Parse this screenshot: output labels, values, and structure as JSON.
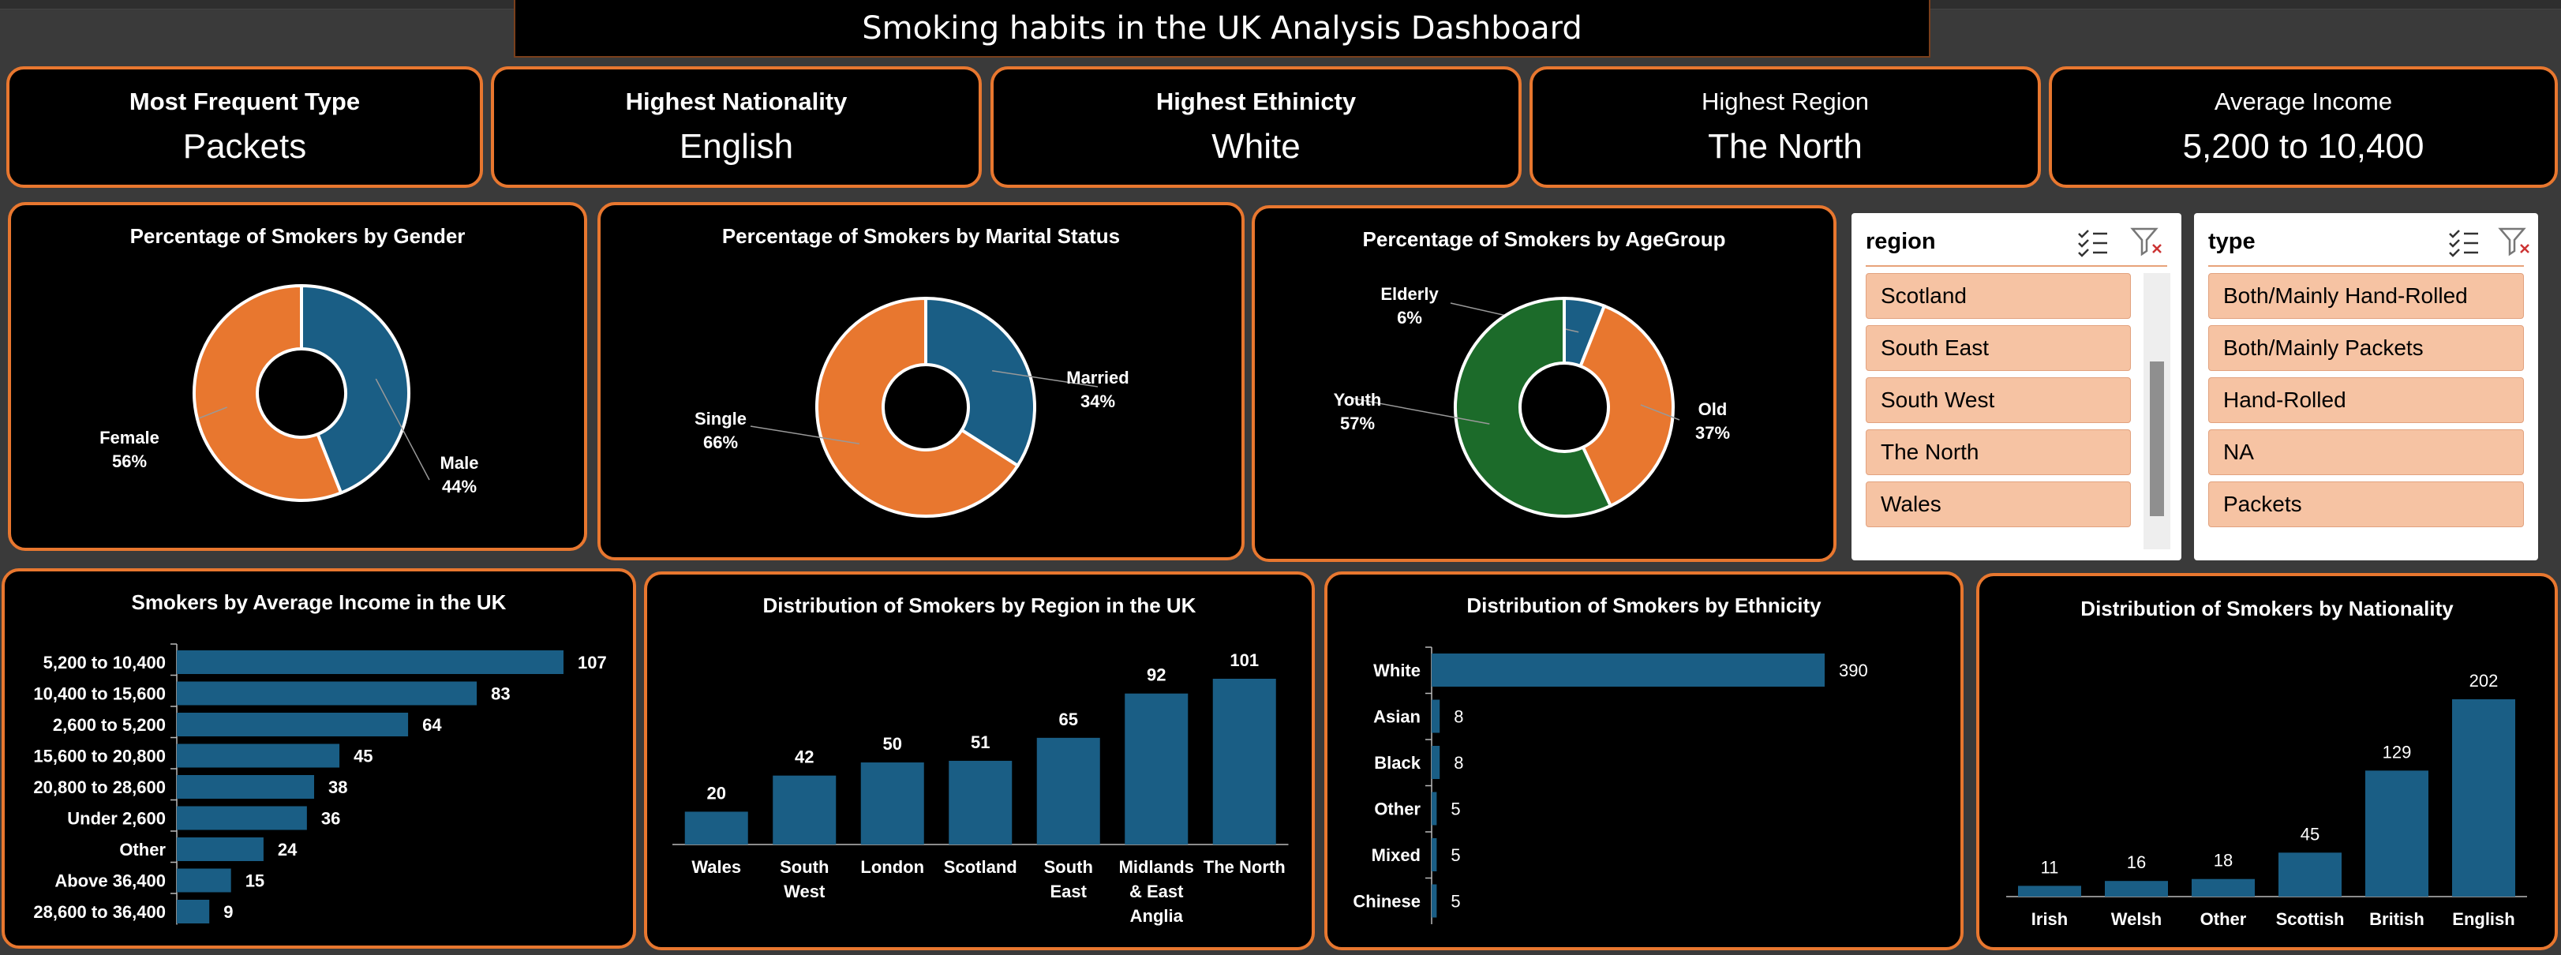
{
  "dashboard": {
    "title": "Smoking habits in the UK Analysis Dashboard"
  },
  "kpis": [
    {
      "label": "Most Frequent Type",
      "value": "Packets"
    },
    {
      "label": "Highest Nationality",
      "value": "English"
    },
    {
      "label": "Highest Ethinicty",
      "value": "White"
    },
    {
      "label": "Highest Region",
      "value": "The North"
    },
    {
      "label": "Average Income",
      "value": "5,200 to 10,400"
    }
  ],
  "slicers": {
    "region": {
      "header": "region",
      "items": [
        "Scotland",
        "South East",
        "South West",
        "The North",
        "Wales"
      ]
    },
    "type": {
      "header": "type",
      "items": [
        "Both/Mainly Hand-Rolled",
        "Both/Mainly Packets",
        "Hand-Rolled",
        "NA",
        "Packets"
      ]
    }
  },
  "colors": {
    "accent_orange": "#e8772f",
    "blue": "#1a5e85",
    "green": "#1c6b2a",
    "background": "#000000",
    "slicer_item": "#f6c3a3"
  },
  "chart_data": [
    {
      "id": "gender",
      "type": "pie",
      "title": "Percentage of Smokers by Gender",
      "slices": [
        {
          "label": "Male",
          "value": 44,
          "pct_label": "44%",
          "color": "#1a5e85"
        },
        {
          "label": "Female",
          "value": 56,
          "pct_label": "56%",
          "color": "#e8772f"
        }
      ]
    },
    {
      "id": "marital",
      "type": "pie",
      "title": "Percentage of Smokers by Marital Status",
      "slices": [
        {
          "label": "Married",
          "value": 34,
          "pct_label": "34%",
          "color": "#1a5e85"
        },
        {
          "label": "Single",
          "value": 66,
          "pct_label": "66%",
          "color": "#e8772f"
        }
      ]
    },
    {
      "id": "agegroup",
      "type": "pie",
      "title": "Percentage of Smokers by AgeGroup",
      "slices": [
        {
          "label": "Elderly",
          "value": 6,
          "pct_label": "6%",
          "color": "#1a5e85"
        },
        {
          "label": "Old",
          "value": 37,
          "pct_label": "37%",
          "color": "#e8772f"
        },
        {
          "label": "Youth",
          "value": 57,
          "pct_label": "57%",
          "color": "#1c6b2a"
        }
      ]
    },
    {
      "id": "income",
      "type": "bar",
      "orientation": "horizontal",
      "title": "Smokers by Average Income in the UK",
      "categories": [
        "5,200 to 10,400",
        "10,400 to 15,600",
        "2,600 to 5,200",
        "15,600 to 20,800",
        "20,800 to 28,600",
        "Under 2,600",
        "Other",
        "Above 36,400",
        "28,600 to 36,400"
      ],
      "values": [
        107,
        83,
        64,
        45,
        38,
        36,
        24,
        15,
        9
      ],
      "xlim": [
        0,
        107
      ]
    },
    {
      "id": "region",
      "type": "bar",
      "orientation": "vertical",
      "title": "Distribution of Smokers by Region in the UK",
      "categories": [
        "Wales",
        "South West",
        "London",
        "Scotland",
        "South East",
        "Midlands & East Anglia",
        "The North"
      ],
      "values": [
        20,
        42,
        50,
        51,
        65,
        92,
        101
      ],
      "ylim": [
        0,
        101
      ]
    },
    {
      "id": "ethnicity",
      "type": "bar",
      "orientation": "horizontal",
      "title": "Distribution of Smokers by Ethnicity",
      "categories": [
        "White",
        "Asian",
        "Black",
        "Other",
        "Mixed",
        "Chinese"
      ],
      "values": [
        390,
        8,
        8,
        5,
        5,
        5
      ],
      "xlim": [
        0,
        390
      ]
    },
    {
      "id": "nationality",
      "type": "bar",
      "orientation": "vertical",
      "title": "Distribution of Smokers by Nationality",
      "categories": [
        "Irish",
        "Welsh",
        "Other",
        "Scottish",
        "British",
        "English"
      ],
      "values": [
        11,
        16,
        18,
        45,
        129,
        202
      ],
      "ylim": [
        0,
        202
      ]
    }
  ]
}
